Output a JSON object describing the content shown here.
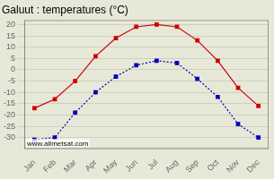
{
  "chart_data": {
    "type": "line",
    "title": "Galuut : temperatures (°C)",
    "categories": [
      "Jan",
      "Feb",
      "Mar",
      "Apr",
      "May",
      "Jun",
      "Jul",
      "Aug",
      "Sep",
      "Oct",
      "Nov",
      "Dec"
    ],
    "series": [
      {
        "color": "#cc0000",
        "marker": "square",
        "line_style": "solid",
        "values": [
          -17,
          -13,
          -5,
          6,
          14,
          19,
          20,
          19,
          13,
          4,
          -8,
          -16
        ]
      },
      {
        "color": "#0000bb",
        "marker": "square",
        "line_style": "dotted",
        "values": [
          -31,
          -30,
          -19,
          -10,
          -3,
          2,
          4,
          3,
          -4,
          -12,
          -24,
          -30
        ]
      }
    ],
    "ylim": [
      -35,
      22
    ],
    "yticks": [
      -30,
      -25,
      -20,
      -15,
      -10,
      -5,
      0,
      5,
      10,
      15,
      20
    ],
    "grid": true,
    "annotations": [
      "www.allmetsat.com"
    ]
  }
}
